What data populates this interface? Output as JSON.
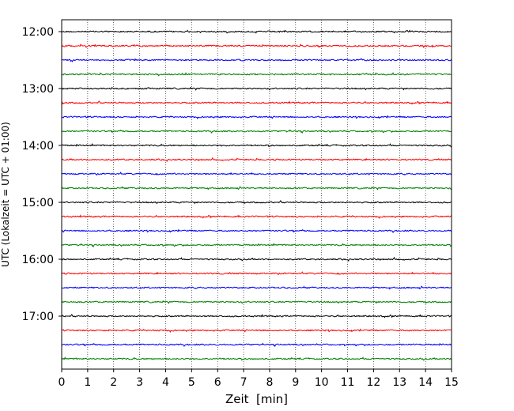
{
  "chart_data": {
    "type": "line",
    "title": "",
    "xlabel": "Zeit  [min]",
    "ylabel": "UTC (Lokalzeit = UTC + 01:00)",
    "xlim": [
      0,
      15
    ],
    "x_ticks": [
      0,
      1,
      2,
      3,
      4,
      5,
      6,
      7,
      8,
      9,
      10,
      11,
      12,
      13,
      14,
      15
    ],
    "y_ticks": [
      "12:00",
      "13:00",
      "14:00",
      "15:00",
      "16:00",
      "17:00"
    ],
    "grid": "vertical dotted at each minute",
    "series_colors": [
      "#000000",
      "#ff0000",
      "#0000ff",
      "#008000"
    ],
    "series": [
      {
        "start": "12:00",
        "color": "#000000"
      },
      {
        "start": "12:15",
        "color": "#ff0000"
      },
      {
        "start": "12:30",
        "color": "#0000ff"
      },
      {
        "start": "12:45",
        "color": "#008000"
      },
      {
        "start": "13:00",
        "color": "#000000"
      },
      {
        "start": "13:15",
        "color": "#ff0000"
      },
      {
        "start": "13:30",
        "color": "#0000ff"
      },
      {
        "start": "13:45",
        "color": "#008000"
      },
      {
        "start": "14:00",
        "color": "#000000"
      },
      {
        "start": "14:15",
        "color": "#ff0000"
      },
      {
        "start": "14:30",
        "color": "#0000ff"
      },
      {
        "start": "14:45",
        "color": "#008000"
      },
      {
        "start": "15:00",
        "color": "#000000"
      },
      {
        "start": "15:15",
        "color": "#ff0000"
      },
      {
        "start": "15:30",
        "color": "#0000ff"
      },
      {
        "start": "15:45",
        "color": "#008000"
      },
      {
        "start": "16:00",
        "color": "#000000"
      },
      {
        "start": "16:15",
        "color": "#ff0000"
      },
      {
        "start": "16:30",
        "color": "#0000ff"
      },
      {
        "start": "16:45",
        "color": "#008000"
      },
      {
        "start": "17:00",
        "color": "#000000"
      },
      {
        "start": "17:15",
        "color": "#ff0000"
      },
      {
        "start": "17:30",
        "color": "#0000ff"
      },
      {
        "start": "17:45",
        "color": "#008000"
      }
    ]
  }
}
